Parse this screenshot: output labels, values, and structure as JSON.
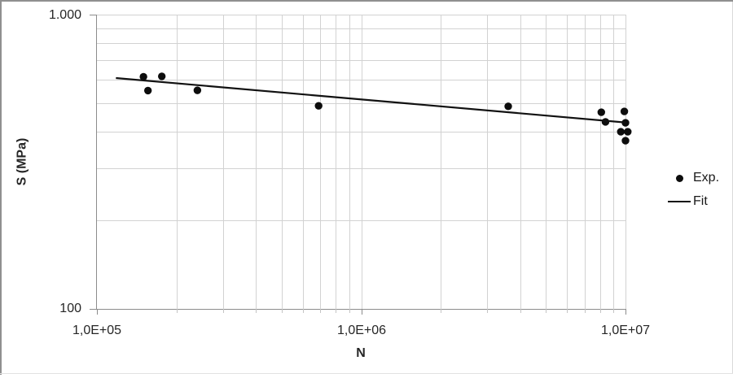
{
  "window": {
    "background": "#ffffff",
    "border_color": "#8f8f8f"
  },
  "chart_data": {
    "type": "scatter",
    "title": "",
    "xlabel": "N",
    "ylabel": "S (MPa)",
    "x_scale": "log",
    "y_scale": "log",
    "xlim": [
      100000,
      10000000
    ],
    "ylim": [
      100,
      1000
    ],
    "grid": true,
    "x_ticks": [
      {
        "label": "1,0E+05",
        "value": 100000
      },
      {
        "label": "1,0E+06",
        "value": 1000000
      },
      {
        "label": "1,0E+07",
        "value": 10000000
      }
    ],
    "y_ticks": [
      {
        "label": "1.000",
        "value": 1000
      },
      {
        "label": "100",
        "value": 100
      }
    ],
    "x_grid_values": [
      200000,
      300000,
      400000,
      500000,
      600000,
      700000,
      800000,
      900000,
      1000000,
      2000000,
      3000000,
      4000000,
      5000000,
      6000000,
      7000000,
      8000000,
      9000000,
      10000000
    ],
    "y_grid_values": [
      200,
      300,
      400,
      500,
      600,
      700,
      800,
      900,
      1000
    ],
    "x_decade_values": [
      100000,
      1000000,
      10000000
    ],
    "series": [
      {
        "name": "Exp.",
        "type": "scatter",
        "marker": "circle",
        "color": "#0d0d0d",
        "points": [
          [
            150000,
            615
          ],
          [
            176000,
            617
          ],
          [
            156000,
            552
          ],
          [
            240000,
            553
          ],
          [
            690000,
            490
          ],
          [
            3600000,
            488
          ],
          [
            8100000,
            466
          ],
          [
            8400000,
            432
          ],
          [
            9900000,
            469
          ],
          [
            10000000,
            429
          ],
          [
            9600000,
            400
          ],
          [
            10200000,
            400
          ],
          [
            10000000,
            373
          ]
        ]
      },
      {
        "name": "Fit",
        "type": "line",
        "color": "#111111",
        "points": [
          [
            118000,
            609
          ],
          [
            10000000,
            430
          ]
        ]
      }
    ],
    "legend": {
      "position": "right",
      "entries": [
        {
          "label": "Exp.",
          "marker": "dot"
        },
        {
          "label": "Fit",
          "marker": "line"
        }
      ]
    },
    "colors": {
      "grid": "#d2d2d2",
      "axis": "#8c8c8c",
      "minor_tick": "#c4c4c4",
      "text": "#262626"
    }
  }
}
